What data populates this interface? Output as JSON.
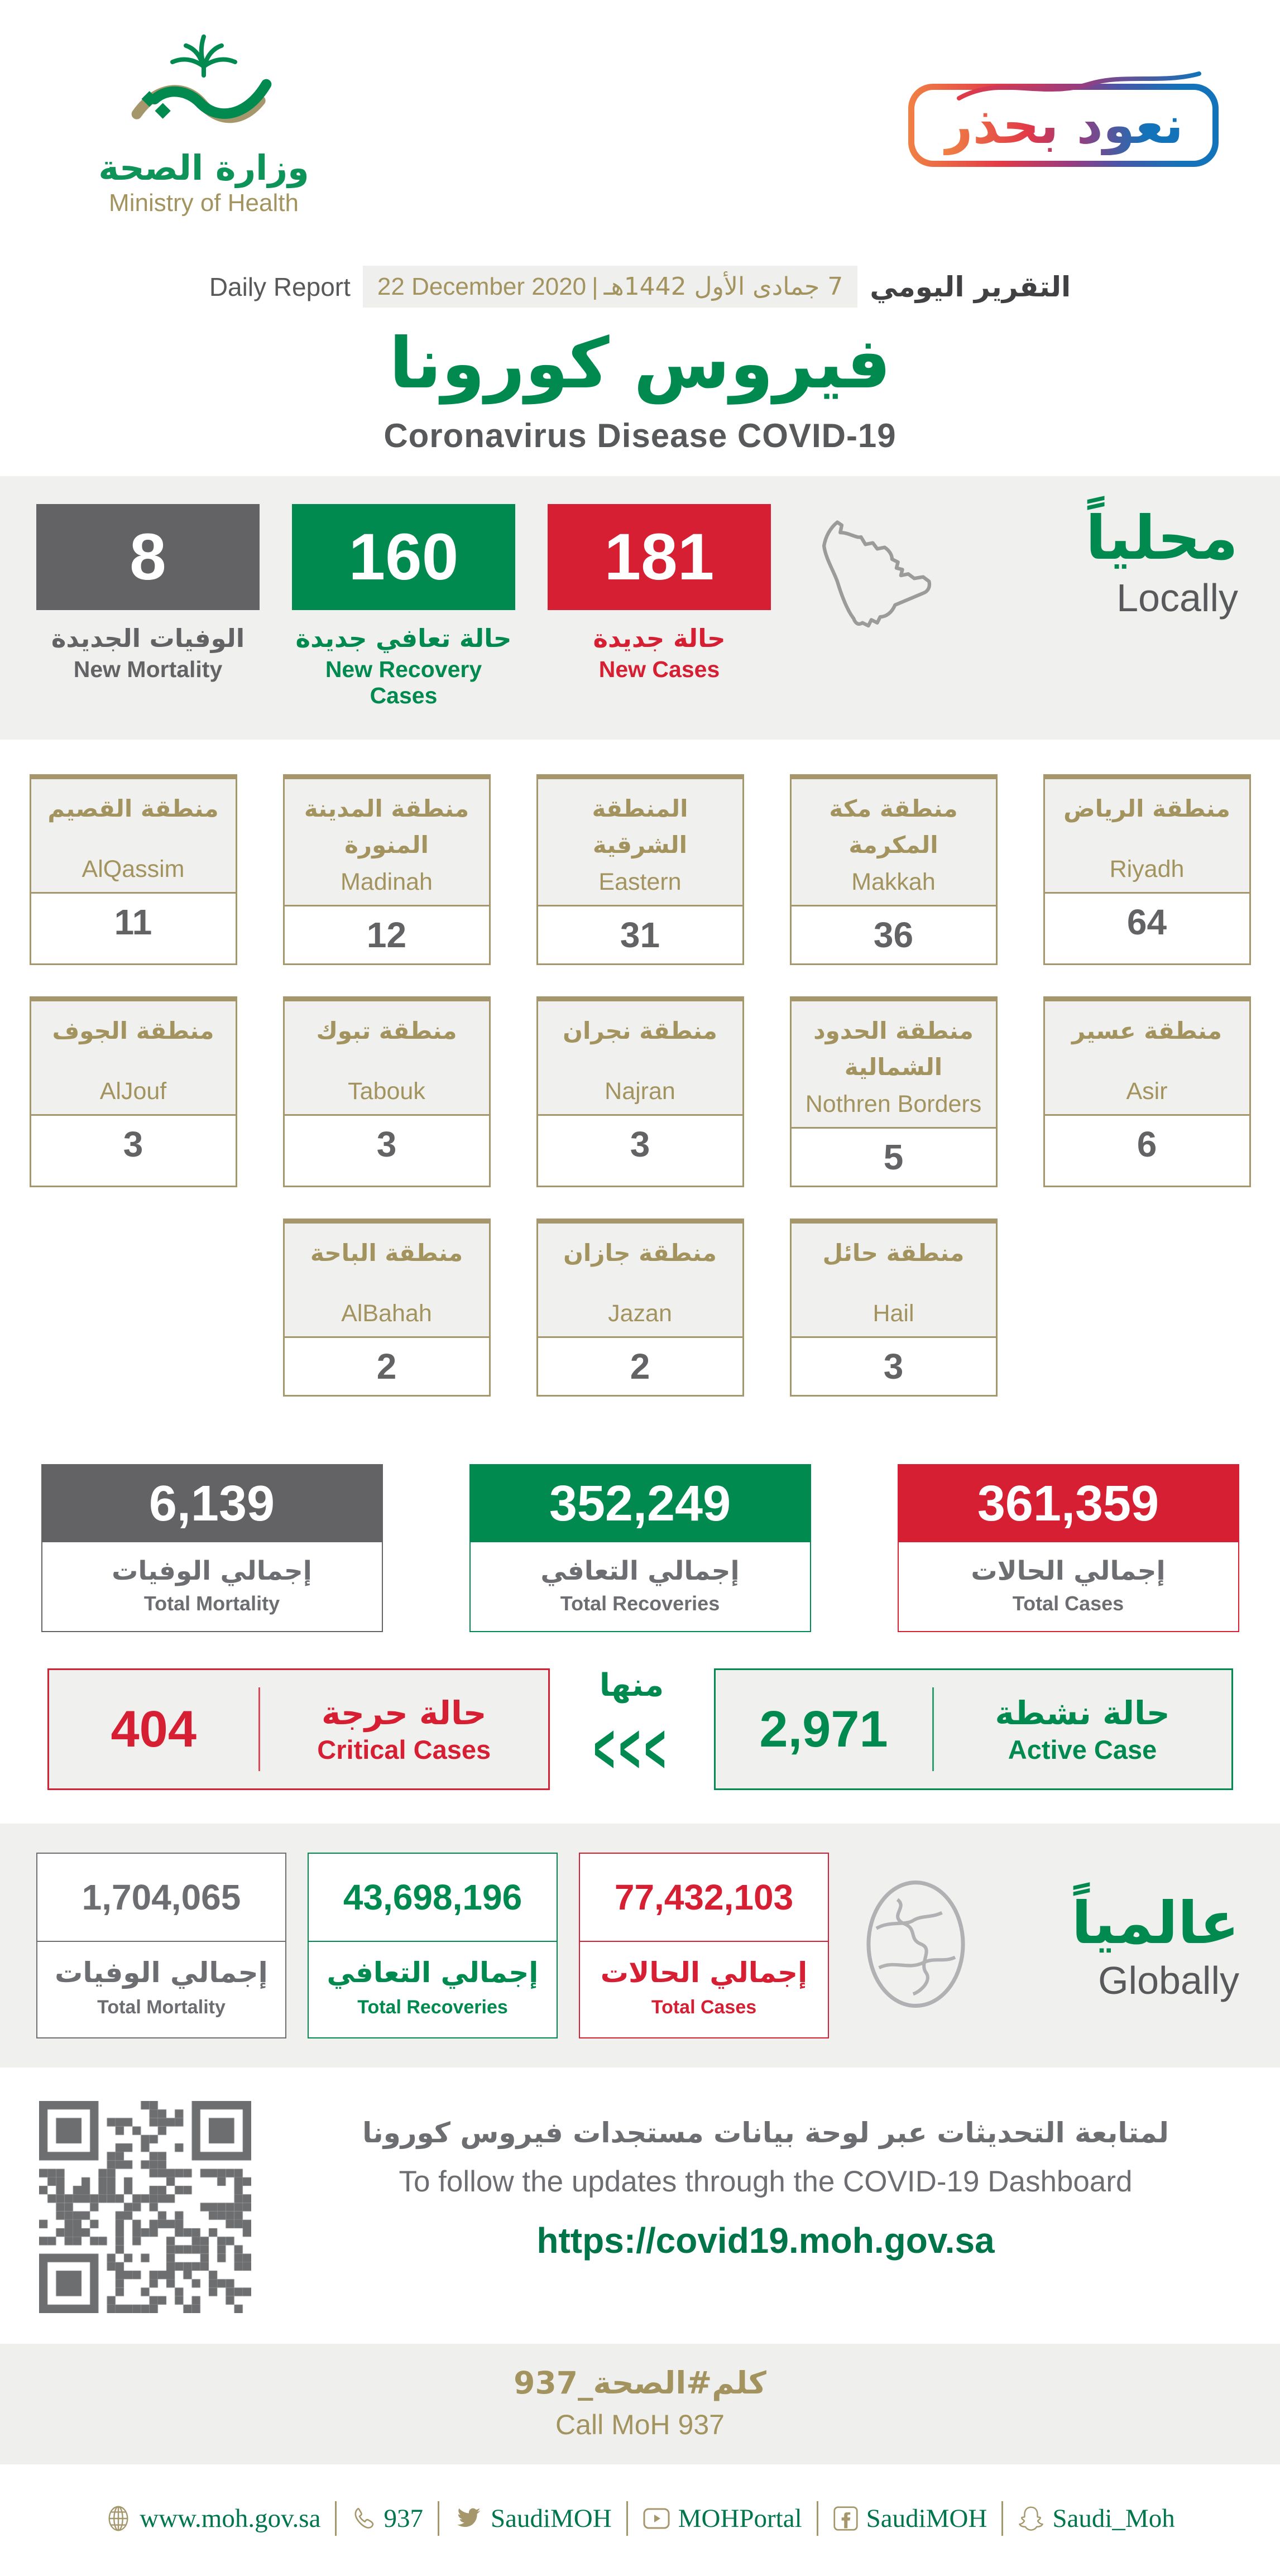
{
  "colors": {
    "green": "#008A4F",
    "red": "#D71F33",
    "gray": "#636366",
    "gold": "#A5976B",
    "band": "#F0F0EE"
  },
  "header": {
    "logo_ar": "وزارة الصحة",
    "logo_en": "Ministry of Health",
    "badge_text": "نعود بحذر",
    "report_en": "Daily Report",
    "date_en": "22 December 2020",
    "date_pipe": "|",
    "date_hijri": "7 جمادى الأول 1442هـ",
    "report_ar": "التقرير اليومي",
    "title_ar": "فيروس كورونا",
    "title_en": "Coronavirus Disease COVID-19"
  },
  "locally": {
    "label_ar": "محلياً",
    "label_en": "Locally",
    "stats": [
      {
        "value": "8",
        "label_ar": "الوفيات الجديدة",
        "label_en": "New Mortality"
      },
      {
        "value": "160",
        "label_ar": "حالة تعافي جديدة",
        "label_en": "New Recovery Cases"
      },
      {
        "value": "181",
        "label_ar": "حالة جديدة",
        "label_en": "New Cases"
      }
    ]
  },
  "regions": {
    "rows": [
      [
        {
          "ar": "منطقة القصيم",
          "en": "AlQassim",
          "value": "11"
        },
        {
          "ar": "منطقة المدينة المنورة",
          "en": "Madinah",
          "value": "12"
        },
        {
          "ar": "المنطقة الشرقية",
          "en": "Eastern",
          "value": "31"
        },
        {
          "ar": "منطقة مكة المكرمة",
          "en": "Makkah",
          "value": "36"
        },
        {
          "ar": "منطقة الرياض",
          "en": "Riyadh",
          "value": "64"
        }
      ],
      [
        {
          "ar": "منطقة الجوف",
          "en": "AlJouf",
          "value": "3"
        },
        {
          "ar": "منطقة تبوك",
          "en": "Tabouk",
          "value": "3"
        },
        {
          "ar": "منطقة نجران",
          "en": "Najran",
          "value": "3"
        },
        {
          "ar": "منطقة الحدود الشمالية",
          "en": "Nothren Borders",
          "value": "5"
        },
        {
          "ar": "منطقة عسير",
          "en": "Asir",
          "value": "6"
        }
      ],
      [
        {
          "ar": "منطقة الباحة",
          "en": "AlBahah",
          "value": "2"
        },
        {
          "ar": "منطقة جازان",
          "en": "Jazan",
          "value": "2"
        },
        {
          "ar": "منطقة حائل",
          "en": "Hail",
          "value": "3"
        }
      ]
    ]
  },
  "totals": [
    {
      "value": "6,139",
      "label_ar": "إجمالي الوفيات",
      "label_en": "Total Mortality"
    },
    {
      "value": "352,249",
      "label_ar": "إجمالي التعافي",
      "label_en": "Total Recoveries"
    },
    {
      "value": "361,359",
      "label_ar": "إجمالي الحالات",
      "label_en": "Total Cases"
    }
  ],
  "breakdown": {
    "critical": {
      "value": "404",
      "label_ar": "حالة حرجة",
      "label_en": "Critical Cases"
    },
    "of_which_ar": "منها",
    "chevrons": "<<<",
    "active": {
      "value": "2,971",
      "label_ar": "حالة نشطة",
      "label_en": "Active Case"
    }
  },
  "globally": {
    "label_ar": "عالمياً",
    "label_en": "Globally",
    "stats": [
      {
        "value": "1,704,065",
        "label_ar": "إجمالي الوفيات",
        "label_en": "Total Mortality"
      },
      {
        "value": "43,698,196",
        "label_ar": "إجمالي التعافي",
        "label_en": "Total Recoveries"
      },
      {
        "value": "77,432,103",
        "label_ar": "إجمالي الحالات",
        "label_en": "Total Cases"
      }
    ]
  },
  "dashboard": {
    "line_ar": "لمتابعة التحديثات عبر لوحة بيانات مستجدات فيروس كورونا",
    "line_en": "To follow the updates through the COVID-19 Dashboard",
    "url": "https://covid19.moh.gov.sa"
  },
  "call": {
    "ar": "كلم#الصحة_937",
    "en": "Call MoH 937"
  },
  "footer": {
    "links": [
      {
        "icon": "globe-icon",
        "label": "www.moh.gov.sa"
      },
      {
        "icon": "phone-icon",
        "label": "937"
      },
      {
        "icon": "twitter-icon",
        "label": "SaudiMOH"
      },
      {
        "icon": "youtube-icon",
        "label": "MOHPortal"
      },
      {
        "icon": "facebook-icon",
        "label": "SaudiMOH"
      },
      {
        "icon": "snapchat-icon",
        "label": "Saudi_Moh"
      }
    ]
  }
}
